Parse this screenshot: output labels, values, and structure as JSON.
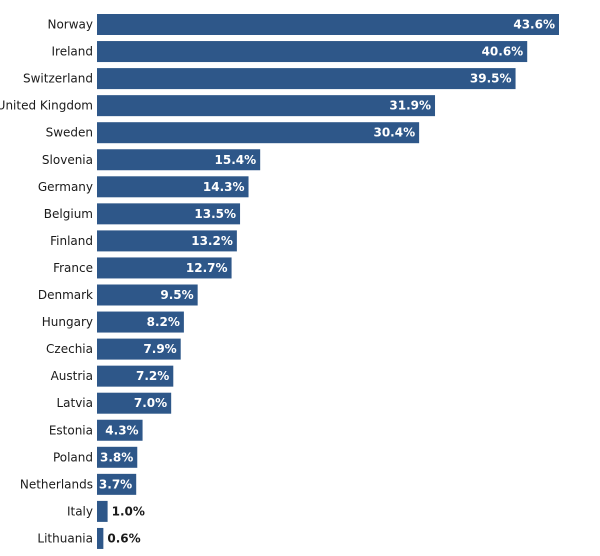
{
  "chart_data": {
    "type": "bar",
    "orientation": "horizontal",
    "title": "",
    "xlabel": "",
    "ylabel": "",
    "categories": [
      "Norway",
      "Ireland",
      "Switzerland",
      "United Kingdom",
      "Sweden",
      "Slovenia",
      "Germany",
      "Belgium",
      "Finland",
      "France",
      "Denmark",
      "Hungary",
      "Czechia",
      "Austria",
      "Latvia",
      "Estonia",
      "Poland",
      "Netherlands",
      "Italy",
      "Lithuania"
    ],
    "values": [
      43.6,
      40.6,
      39.5,
      31.9,
      30.4,
      15.4,
      14.3,
      13.5,
      13.2,
      12.7,
      9.5,
      8.2,
      7.9,
      7.2,
      7.0,
      4.3,
      3.8,
      3.7,
      1.0,
      0.6
    ],
    "value_labels": [
      "43.6%",
      "40.6%",
      "39.5%",
      "31.9%",
      "30.4%",
      "15.4%",
      "14.3%",
      "13.5%",
      "13.2%",
      "12.7%",
      "9.5%",
      "8.2%",
      "7.9%",
      "7.2%",
      "7.0%",
      "4.3%",
      "3.8%",
      "3.7%",
      "1.0%",
      "0.6%"
    ],
    "unit": "%",
    "xlim": [
      0,
      43.6
    ],
    "grid": false,
    "colors": {
      "bar": "#2e5789",
      "label_inside": "#ffffff",
      "label_outside": "#1a1a1a"
    }
  }
}
